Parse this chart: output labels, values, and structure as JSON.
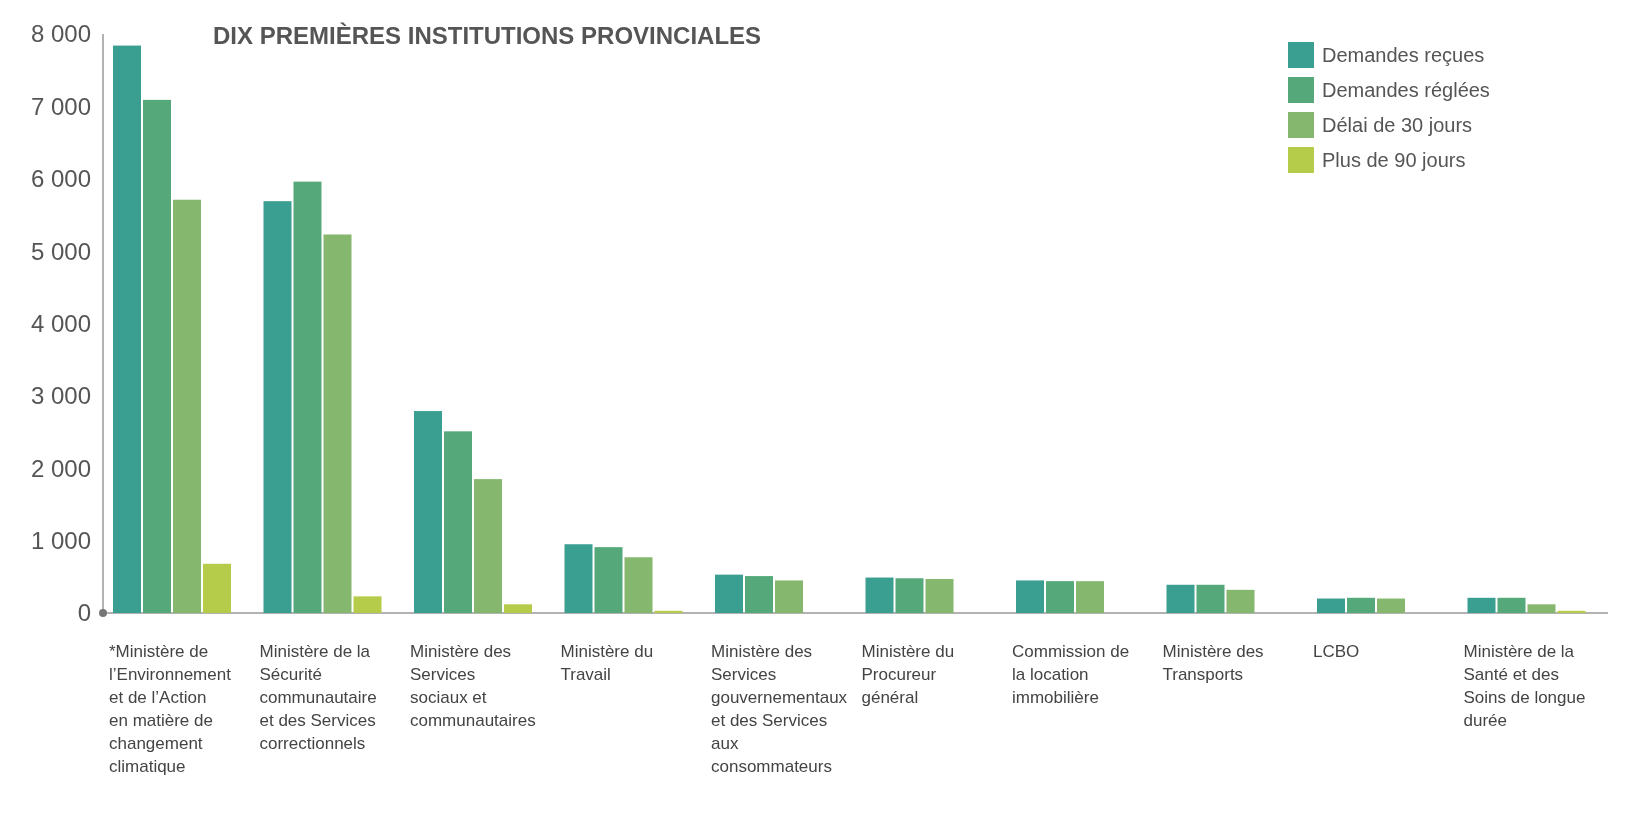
{
  "chart_data": {
    "type": "bar",
    "title": "DIX PREMIÈRES INSTITUTIONS PROVINCIALES",
    "categories": [
      "*Ministère de l’Environnement et de l’Action en matière de changement climatique",
      "Ministère de la Sécurité communautaire et des Services correctionnels",
      "Ministère des Services sociaux et communautaires",
      "Ministère du Travail",
      "Ministère des Services gouvernementaux et des Services aux consommateurs",
      "Ministère du Procureur général",
      "Commission de la location immobilière",
      "Ministère des Transports",
      "LCBO",
      "Ministère de la Santé et des Soins de longue durée"
    ],
    "series": [
      {
        "name": "Demandes reçues",
        "color": "#3a9e90",
        "values": [
          7840,
          5690,
          2790,
          950,
          530,
          490,
          450,
          390,
          200,
          210
        ]
      },
      {
        "name": "Demandes réglées",
        "color": "#55a87a",
        "values": [
          7090,
          5960,
          2510,
          910,
          510,
          480,
          440,
          390,
          210,
          210
        ]
      },
      {
        "name": "Délai de 30 jours",
        "color": "#85b86e",
        "values": [
          5710,
          5230,
          1850,
          770,
          450,
          470,
          440,
          320,
          200,
          120
        ]
      },
      {
        "name": "Plus de 90 jours",
        "color": "#b5cc4a",
        "values": [
          680,
          230,
          120,
          30,
          null,
          null,
          null,
          null,
          null,
          30
        ]
      }
    ],
    "ylim": [
      0,
      8000
    ],
    "yticks": [
      {
        "value": 0,
        "label": "0"
      },
      {
        "value": 1000,
        "label": "1 000"
      },
      {
        "value": 2000,
        "label": "2 000"
      },
      {
        "value": 3000,
        "label": "3 000"
      },
      {
        "value": 4000,
        "label": "4 000"
      },
      {
        "value": 5000,
        "label": "5 000"
      },
      {
        "value": 6000,
        "label": "6 000"
      },
      {
        "value": 7000,
        "label": "7 000"
      },
      {
        "value": 8000,
        "label": "8 000"
      }
    ],
    "grid": false,
    "legend": "top right"
  }
}
